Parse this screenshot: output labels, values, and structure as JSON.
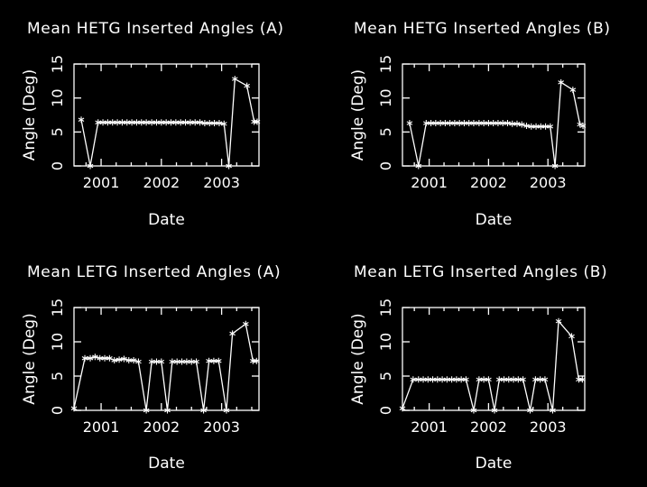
{
  "chart_data": [
    {
      "type": "line",
      "title": "Mean HETG Inserted Angles (A)",
      "xlabel": "Date",
      "ylabel": "Angle (Deg)",
      "xlim": [
        2000.55,
        2003.62
      ],
      "ylim": [
        0,
        15
      ],
      "xticks": [
        2001,
        2002,
        2003
      ],
      "yticks": [
        0,
        5,
        10,
        15
      ],
      "series": [
        {
          "marker": "asterisk",
          "x": [
            2000.67,
            2000.82,
            2000.95,
            2001.03,
            2001.11,
            2001.19,
            2001.27,
            2001.35,
            2001.43,
            2001.51,
            2001.59,
            2001.67,
            2001.75,
            2001.84,
            2001.92,
            2002.0,
            2002.08,
            2002.16,
            2002.24,
            2002.32,
            2002.4,
            2002.48,
            2002.56,
            2002.64,
            2002.72,
            2002.8,
            2002.88,
            2002.96,
            2003.04,
            2003.12,
            2003.22,
            2003.42,
            2003.54,
            2003.59
          ],
          "y": [
            6.8,
            0.0,
            6.4,
            6.4,
            6.4,
            6.4,
            6.4,
            6.4,
            6.4,
            6.4,
            6.4,
            6.4,
            6.4,
            6.4,
            6.4,
            6.4,
            6.4,
            6.4,
            6.4,
            6.4,
            6.4,
            6.4,
            6.4,
            6.4,
            6.3,
            6.3,
            6.3,
            6.3,
            6.2,
            0.0,
            12.8,
            11.8,
            6.5,
            6.5
          ]
        }
      ]
    },
    {
      "type": "line",
      "title": "Mean HETG Inserted Angles (B)",
      "xlabel": "Date",
      "ylabel": "Angle (Deg)",
      "xlim": [
        2000.55,
        2003.62
      ],
      "ylim": [
        0,
        15
      ],
      "xticks": [
        2001,
        2002,
        2003
      ],
      "yticks": [
        0,
        5,
        10,
        15
      ],
      "series": [
        {
          "marker": "asterisk",
          "x": [
            2000.67,
            2000.82,
            2000.95,
            2001.03,
            2001.11,
            2001.19,
            2001.27,
            2001.35,
            2001.43,
            2001.51,
            2001.59,
            2001.67,
            2001.75,
            2001.84,
            2001.92,
            2002.0,
            2002.08,
            2002.16,
            2002.24,
            2002.32,
            2002.4,
            2002.48,
            2002.56,
            2002.64,
            2002.72,
            2002.8,
            2002.88,
            2002.96,
            2003.04,
            2003.12,
            2003.22,
            2003.42,
            2003.54,
            2003.59
          ],
          "y": [
            6.3,
            0.0,
            6.3,
            6.3,
            6.3,
            6.3,
            6.3,
            6.3,
            6.3,
            6.3,
            6.3,
            6.3,
            6.3,
            6.3,
            6.3,
            6.3,
            6.3,
            6.3,
            6.3,
            6.3,
            6.2,
            6.2,
            6.1,
            5.9,
            5.8,
            5.8,
            5.8,
            5.8,
            5.8,
            0.0,
            12.3,
            11.2,
            6.1,
            5.9
          ]
        }
      ]
    },
    {
      "type": "line",
      "title": "Mean LETG Inserted Angles (A)",
      "xlabel": "Date",
      "ylabel": "Angle (Deg)",
      "xlim": [
        2000.55,
        2003.62
      ],
      "ylim": [
        0,
        15
      ],
      "xticks": [
        2001,
        2002,
        2003
      ],
      "yticks": [
        0,
        5,
        10,
        15
      ],
      "series": [
        {
          "marker": "asterisk",
          "x": [
            2000.55,
            2000.73,
            2000.82,
            2000.9,
            2000.98,
            2001.06,
            2001.14,
            2001.22,
            2001.3,
            2001.38,
            2001.46,
            2001.54,
            2001.62,
            2001.75,
            2001.84,
            2001.92,
            2002.0,
            2002.1,
            2002.18,
            2002.26,
            2002.34,
            2002.42,
            2002.5,
            2002.58,
            2002.7,
            2002.79,
            2002.87,
            2002.95,
            2003.08,
            2003.18,
            2003.4,
            2003.52,
            2003.58
          ],
          "y": [
            0.3,
            7.6,
            7.6,
            7.8,
            7.6,
            7.6,
            7.6,
            7.3,
            7.4,
            7.5,
            7.3,
            7.3,
            7.1,
            0.0,
            7.1,
            7.1,
            7.1,
            0.0,
            7.1,
            7.1,
            7.1,
            7.1,
            7.1,
            7.1,
            0.0,
            7.2,
            7.2,
            7.2,
            0.0,
            11.2,
            12.6,
            7.2,
            7.2
          ]
        }
      ]
    },
    {
      "type": "line",
      "title": "Mean LETG Inserted Angles (B)",
      "xlabel": "Date",
      "ylabel": "Angle (Deg)",
      "xlim": [
        2000.55,
        2003.62
      ],
      "ylim": [
        0,
        15
      ],
      "xticks": [
        2001,
        2002,
        2003
      ],
      "yticks": [
        0,
        5,
        10,
        15
      ],
      "series": [
        {
          "marker": "asterisk",
          "x": [
            2000.55,
            2000.73,
            2000.82,
            2000.9,
            2000.98,
            2001.06,
            2001.14,
            2001.22,
            2001.3,
            2001.38,
            2001.46,
            2001.54,
            2001.62,
            2001.75,
            2001.84,
            2001.92,
            2002.0,
            2002.1,
            2002.18,
            2002.26,
            2002.34,
            2002.42,
            2002.5,
            2002.58,
            2002.7,
            2002.79,
            2002.87,
            2002.95,
            2003.08,
            2003.18,
            2003.4,
            2003.52,
            2003.58
          ],
          "y": [
            0.3,
            4.5,
            4.5,
            4.5,
            4.5,
            4.5,
            4.5,
            4.5,
            4.5,
            4.5,
            4.5,
            4.5,
            4.5,
            0.0,
            4.5,
            4.5,
            4.5,
            0.0,
            4.5,
            4.5,
            4.5,
            4.5,
            4.5,
            4.5,
            0.0,
            4.5,
            4.5,
            4.5,
            0.0,
            13.0,
            10.8,
            4.5,
            4.5
          ]
        }
      ]
    }
  ]
}
